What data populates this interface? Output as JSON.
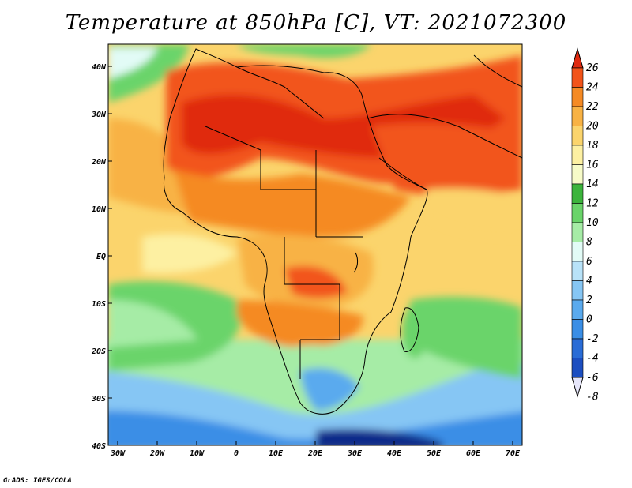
{
  "title": "Temperature at 850hPa [C], VT: 2021072300",
  "credit": "GrADS: IGES/COLA",
  "map": {
    "lon_range": [
      -30,
      75
    ],
    "lat_range": [
      -40,
      45
    ],
    "x_ticks": [
      "30W",
      "20W",
      "10W",
      "0",
      "10E",
      "20E",
      "30E",
      "40E",
      "50E",
      "60E",
      "70E"
    ],
    "y_ticks": [
      "40N",
      "30N",
      "20N",
      "10N",
      "EQ",
      "10S",
      "20S",
      "30S",
      "40S"
    ]
  },
  "colorbar": {
    "labels": [
      "26",
      "24",
      "22",
      "20",
      "18",
      "16",
      "14",
      "12",
      "10",
      "8",
      "6",
      "4",
      "2",
      "0",
      "-2",
      "-4",
      "-6",
      "-8"
    ],
    "colors": [
      "#e02a10",
      "#f2541a",
      "#f58a24",
      "#f8b244",
      "#fbd46c",
      "#fdf0a2",
      "#f7fbc8",
      "#3cb43c",
      "#6ad46a",
      "#a6eca6",
      "#e2fbf6",
      "#b8e2f8",
      "#86c6f4",
      "#5aaaee",
      "#3a8ee6",
      "#2a6cd6",
      "#1c4ec0",
      "#112a8a"
    ]
  }
}
